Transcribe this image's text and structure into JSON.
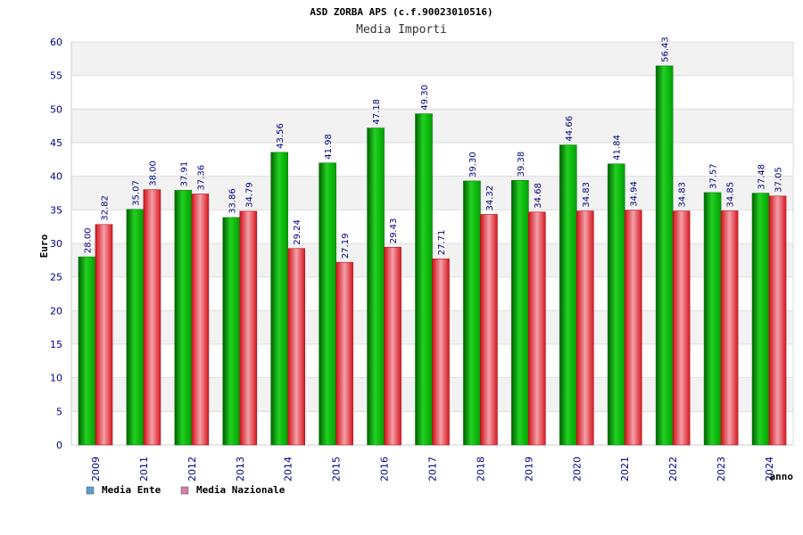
{
  "chart_data": {
    "type": "bar",
    "title": "ASD ZORBA APS (c.f.90023010516)",
    "subtitle": "Media Importi",
    "xlabel": "anno",
    "ylabel": "Euro",
    "ylim": [
      0,
      60
    ],
    "y_ticks": [
      0,
      5,
      10,
      15,
      20,
      25,
      30,
      35,
      40,
      45,
      50,
      55,
      60
    ],
    "grid": true,
    "legend_position": "bottom-left",
    "categories": [
      "2009",
      "2011",
      "2012",
      "2013",
      "2014",
      "2015",
      "2016",
      "2017",
      "2018",
      "2019",
      "2020",
      "2021",
      "2022",
      "2023",
      "2024"
    ],
    "series": [
      {
        "name": "Media Ente",
        "bar_color": "#00b000",
        "legend_color": "#5b9bd5",
        "values": [
          28.0,
          35.07,
          37.91,
          33.86,
          43.56,
          41.98,
          47.18,
          49.3,
          39.3,
          39.38,
          44.66,
          41.84,
          56.43,
          37.57,
          37.48
        ],
        "labels": [
          "28.00",
          "35.07",
          "37.91",
          "33.86",
          "43.56",
          "41.98",
          "47.18",
          "49.30",
          "39.30",
          "39.38",
          "44.66",
          "41.84",
          "56.43",
          "37.57",
          "37.48"
        ]
      },
      {
        "name": "Media Nazionale",
        "bar_color": "#e8202a",
        "legend_color": "#d67fa8",
        "values": [
          32.82,
          38.0,
          37.36,
          34.79,
          29.24,
          27.19,
          29.43,
          27.71,
          34.32,
          34.68,
          34.83,
          34.94,
          34.83,
          34.85,
          37.05
        ],
        "labels": [
          "32.82",
          "38.00",
          "37.36",
          "34.79",
          "29.24",
          "27.19",
          "29.43",
          "27.71",
          "34.32",
          "34.68",
          "34.83",
          "34.94",
          "34.83",
          "34.85",
          "37.05"
        ]
      }
    ],
    "colors": {
      "grid_band": "#f2f2f2",
      "grid_line": "#dddddd",
      "axis_text": "#00008b",
      "label_text": "#000080",
      "title_text": "#000000"
    }
  }
}
